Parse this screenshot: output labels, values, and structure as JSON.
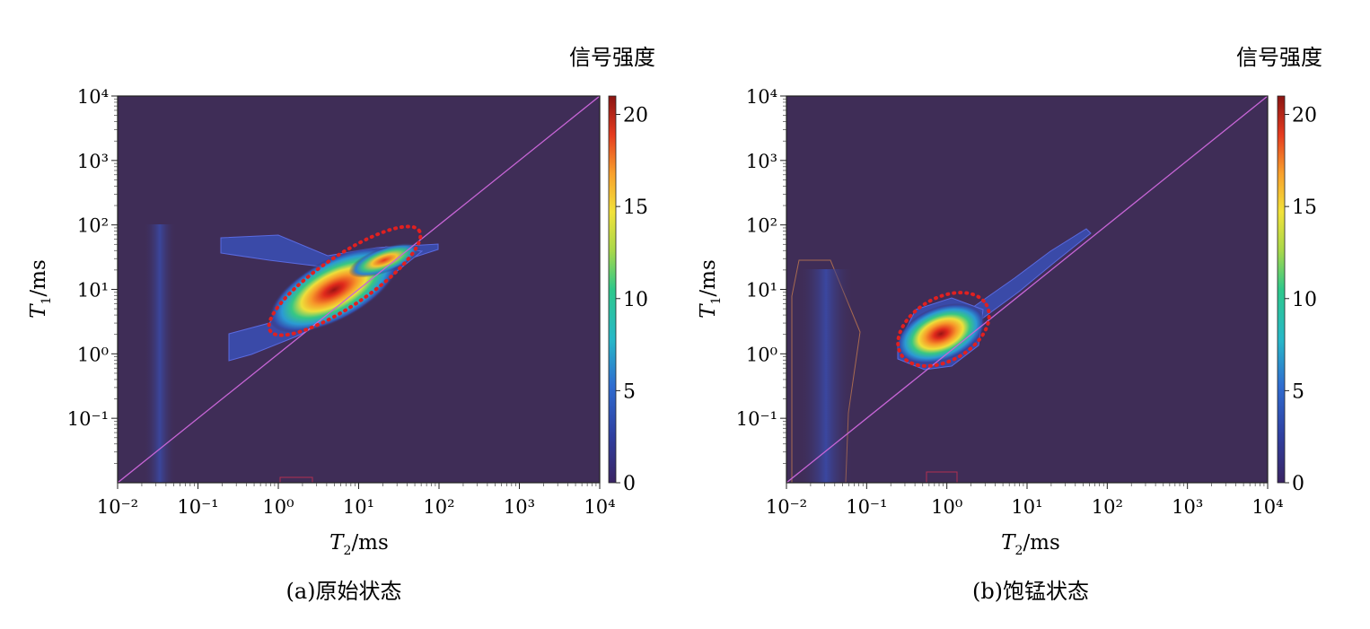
{
  "chart_data": [
    {
      "type": "heatmap",
      "subtitle": "(a)原始状态",
      "xlabel": "T2/ms",
      "ylabel": "T1/ms",
      "colorbar_label": "信号强度",
      "x_scale": "log",
      "y_scale": "log",
      "xlim": [
        0.01,
        10000
      ],
      "ylim": [
        0.01,
        10000
      ],
      "x_ticks": [
        "10⁻²",
        "10⁻¹",
        "10⁰",
        "10¹",
        "10²",
        "10³",
        "10⁴"
      ],
      "y_ticks": [
        "10⁻¹",
        "10⁰",
        "10¹",
        "10²",
        "10³",
        "10⁴"
      ],
      "colorbar_ticks": [
        "0",
        "5",
        "10",
        "15",
        "20"
      ],
      "colorbar_range": [
        0,
        21
      ],
      "reference_line": "T1 = T2",
      "peaks": [
        {
          "T2": 5,
          "T1": 8,
          "intensity": 20
        },
        {
          "T2": 15,
          "T1": 30,
          "intensity": 14
        }
      ],
      "highlight_region": "red dotted ellipse",
      "grid": false
    },
    {
      "type": "heatmap",
      "subtitle": "(b)饱锰状态",
      "xlabel": "T2/ms",
      "ylabel": "T1/ms",
      "colorbar_label": "信号强度",
      "x_scale": "log",
      "y_scale": "log",
      "xlim": [
        0.01,
        10000
      ],
      "ylim": [
        0.01,
        10000
      ],
      "x_ticks": [
        "10⁻²",
        "10⁻¹",
        "10⁰",
        "10¹",
        "10²",
        "10³",
        "10⁴"
      ],
      "y_ticks": [
        "10⁻¹",
        "10⁰",
        "10¹",
        "10²",
        "10³",
        "10⁴"
      ],
      "colorbar_ticks": [
        "0",
        "5",
        "10",
        "15",
        "20"
      ],
      "colorbar_range": [
        0,
        21
      ],
      "reference_line": "T1 = T2",
      "peaks": [
        {
          "T2": 1,
          "T1": 2.5,
          "intensity": 21
        }
      ],
      "highlight_region": "red dotted ellipse",
      "grid": false
    }
  ],
  "colors": {
    "background": "#3f2d57",
    "diagonal": "#c765d6",
    "dotted_ellipse": "#e02020"
  }
}
